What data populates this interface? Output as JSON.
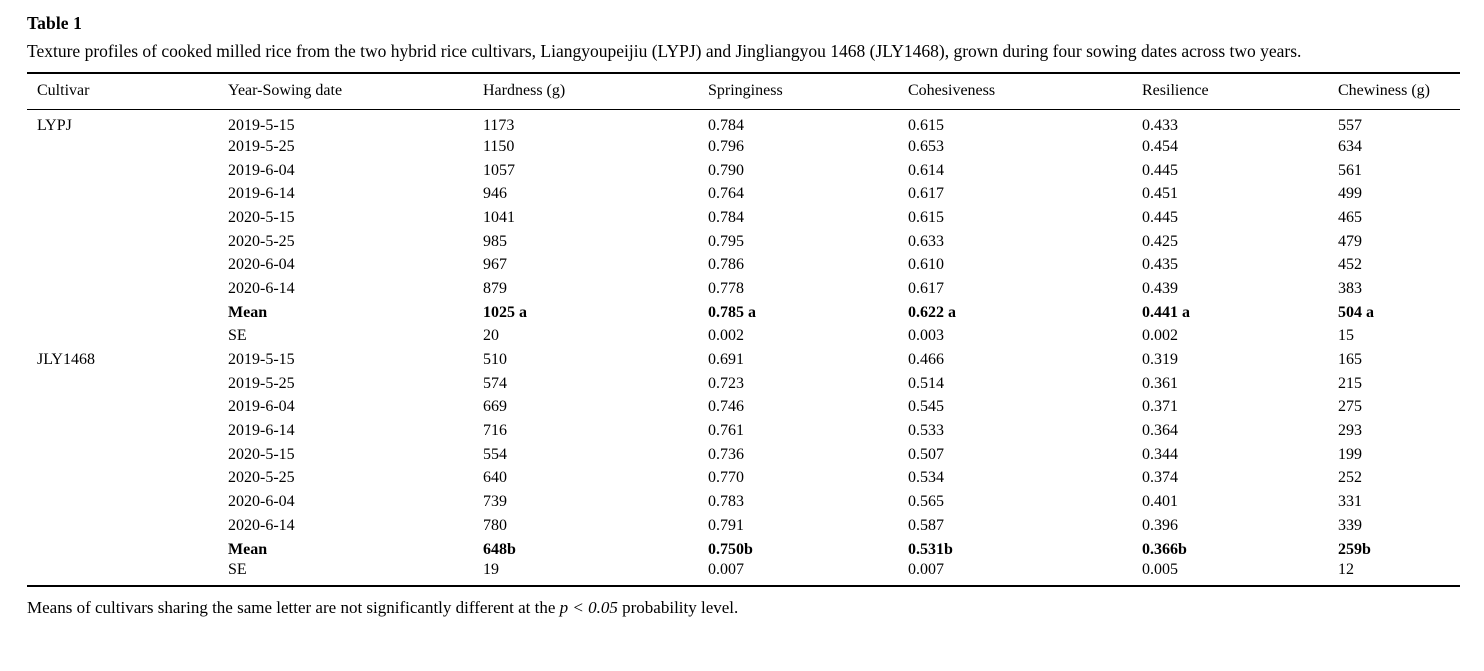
{
  "page": {
    "label": "Table 1",
    "caption": "Texture profiles of cooked milled rice from the two hybrid rice cultivars, Liangyoupeijiu (LYPJ) and Jingliangyou 1468 (JLY1468), grown during four sowing dates across two years.",
    "footnote": {
      "prefix": "Means of cultivars sharing the same letter are not significantly different at the ",
      "italic": "p < 0.05",
      "suffix": " probability level."
    }
  },
  "table": {
    "columns": [
      "Cultivar",
      "Year-Sowing date",
      "Hardness (g)",
      "Springiness",
      "Cohesiveness",
      "Resilience",
      "Chewiness (g)"
    ],
    "groups": [
      {
        "cultivar": "LYPJ",
        "rows": [
          {
            "label": "2019-5-15",
            "values": [
              "1173",
              "0.784",
              "0.615",
              "0.433",
              "557"
            ],
            "bold": false
          },
          {
            "label": "2019-5-25",
            "values": [
              "1150",
              "0.796",
              "0.653",
              "0.454",
              "634"
            ],
            "bold": false
          },
          {
            "label": "2019-6-04",
            "values": [
              "1057",
              "0.790",
              "0.614",
              "0.445",
              "561"
            ],
            "bold": false
          },
          {
            "label": "2019-6-14",
            "values": [
              "946",
              "0.764",
              "0.617",
              "0.451",
              "499"
            ],
            "bold": false
          },
          {
            "label": "2020-5-15",
            "values": [
              "1041",
              "0.784",
              "0.615",
              "0.445",
              "465"
            ],
            "bold": false
          },
          {
            "label": "2020-5-25",
            "values": [
              "985",
              "0.795",
              "0.633",
              "0.425",
              "479"
            ],
            "bold": false
          },
          {
            "label": "2020-6-04",
            "values": [
              "967",
              "0.786",
              "0.610",
              "0.435",
              "452"
            ],
            "bold": false
          },
          {
            "label": "2020-6-14",
            "values": [
              "879",
              "0.778",
              "0.617",
              "0.439",
              "383"
            ],
            "bold": false
          },
          {
            "label": "Mean",
            "values": [
              "1025 a",
              "0.785 a",
              "0.622 a",
              "0.441 a",
              "504 a"
            ],
            "bold": true
          },
          {
            "label": "SE",
            "values": [
              "20",
              "0.002",
              "0.003",
              "0.002",
              "15"
            ],
            "bold": false
          }
        ]
      },
      {
        "cultivar": "JLY1468",
        "rows": [
          {
            "label": "2019-5-15",
            "values": [
              "510",
              "0.691",
              "0.466",
              "0.319",
              "165"
            ],
            "bold": false
          },
          {
            "label": "2019-5-25",
            "values": [
              "574",
              "0.723",
              "0.514",
              "0.361",
              "215"
            ],
            "bold": false
          },
          {
            "label": "2019-6-04",
            "values": [
              "669",
              "0.746",
              "0.545",
              "0.371",
              "275"
            ],
            "bold": false
          },
          {
            "label": "2019-6-14",
            "values": [
              "716",
              "0.761",
              "0.533",
              "0.364",
              "293"
            ],
            "bold": false
          },
          {
            "label": "2020-5-15",
            "values": [
              "554",
              "0.736",
              "0.507",
              "0.344",
              "199"
            ],
            "bold": false
          },
          {
            "label": "2020-5-25",
            "values": [
              "640",
              "0.770",
              "0.534",
              "0.374",
              "252"
            ],
            "bold": false
          },
          {
            "label": "2020-6-04",
            "values": [
              "739",
              "0.783",
              "0.565",
              "0.401",
              "331"
            ],
            "bold": false
          },
          {
            "label": "2020-6-14",
            "values": [
              "780",
              "0.791",
              "0.587",
              "0.396",
              "339"
            ],
            "bold": false
          },
          {
            "label": "Mean",
            "values": [
              "648b",
              "0.750b",
              "0.531b",
              "0.366b",
              "259b"
            ],
            "bold": true
          },
          {
            "label": "SE",
            "values": [
              "19",
              "0.007",
              "0.007",
              "0.005",
              "12"
            ],
            "bold": false
          }
        ]
      }
    ]
  }
}
